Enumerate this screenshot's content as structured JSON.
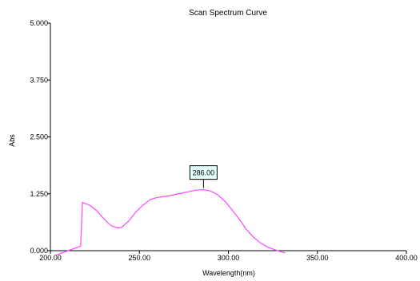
{
  "chart_data": {
    "type": "line",
    "title": "Scan Spectrum Curve",
    "xlabel": "Wavelength(nm)",
    "ylabel": "Abs",
    "xlim": [
      200,
      400
    ],
    "ylim": [
      0,
      5
    ],
    "x_ticks": [
      200,
      250,
      300,
      350,
      400
    ],
    "x_tick_labels": [
      "200.00",
      "250.00",
      "300.00",
      "350.00",
      "400.00"
    ],
    "y_ticks": [
      0,
      1.25,
      2.5,
      3.75,
      5
    ],
    "y_tick_labels": [
      "0.000",
      "1.250",
      "2.500",
      "3.750",
      "5.000"
    ],
    "grid": false,
    "series": [
      {
        "color": "#ff44ff",
        "x": [
          203,
          210,
          217,
          218,
          222,
          226,
          230,
          234,
          238,
          240,
          244,
          248,
          252,
          256,
          260,
          266,
          272,
          278,
          282,
          286,
          290,
          294,
          298,
          302,
          306,
          310,
          314,
          318,
          322,
          326,
          330,
          332
        ],
        "y": [
          -0.1,
          0.0,
          0.1,
          1.06,
          1.0,
          0.88,
          0.7,
          0.55,
          0.5,
          0.51,
          0.65,
          0.85,
          1.0,
          1.12,
          1.17,
          1.2,
          1.25,
          1.3,
          1.33,
          1.34,
          1.31,
          1.23,
          1.09,
          0.9,
          0.7,
          0.47,
          0.3,
          0.17,
          0.08,
          0.02,
          -0.03,
          -0.05
        ]
      }
    ],
    "annotations": [
      {
        "label": "286.00",
        "x": 286,
        "y": 1.34
      }
    ]
  }
}
